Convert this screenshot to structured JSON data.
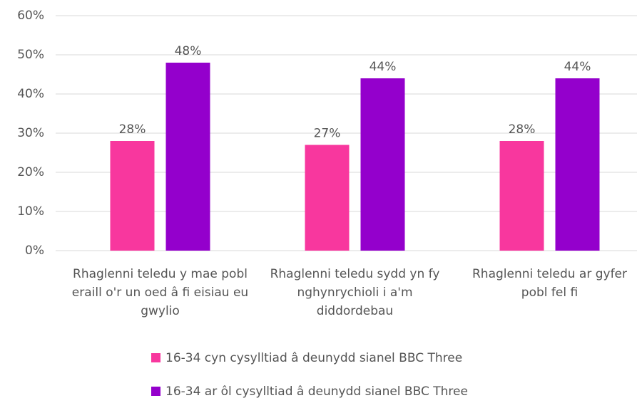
{
  "chart_data": {
    "type": "bar",
    "categories": [
      "Rhaglenni teledu y mae pobl eraill o'r un oed â fi eisiau eu gwylio",
      "Rhaglenni teledu sydd yn fy nghynrychioli i a'm diddordebau",
      "Rhaglenni teledu ar gyfer pobl fel fi"
    ],
    "series": [
      {
        "name": "16-34 cyn cysylltiad â deunydd sianel BBC Three",
        "color": "#f8379e",
        "values": [
          28,
          27,
          28
        ],
        "value_labels": [
          "28%",
          "27%",
          "28%"
        ]
      },
      {
        "name": "16-34 ar ôl cysylltiad â deunydd sianel BBC Three",
        "color": "#9400cc",
        "values": [
          48,
          44,
          44
        ],
        "value_labels": [
          "48%",
          "44%",
          "44%"
        ]
      }
    ],
    "ylim": [
      0,
      60
    ],
    "yticks": [
      {
        "value": 0,
        "label": "0%"
      },
      {
        "value": 10,
        "label": "10%"
      },
      {
        "value": 20,
        "label": "20%"
      },
      {
        "value": 30,
        "label": "30%"
      },
      {
        "value": 40,
        "label": "40%"
      },
      {
        "value": 50,
        "label": "50%"
      },
      {
        "value": 60,
        "label": "60%"
      }
    ],
    "grid": true,
    "legend": "bottom"
  }
}
